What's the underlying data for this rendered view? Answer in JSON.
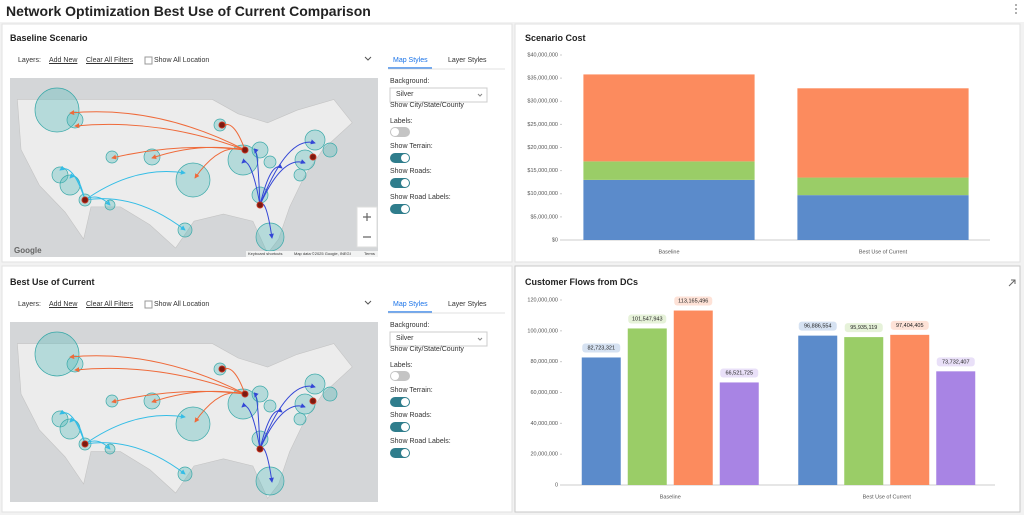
{
  "header": {
    "title": "Network Optimization Best Use of Current Comparison"
  },
  "map_panels": [
    {
      "title": "Baseline Scenario",
      "layers_label": "Layers:",
      "add_new": "Add New",
      "clear_filters": "Clear All Filters",
      "show_all": "Show All Location",
      "tabs": [
        "Map Styles",
        "Layer Styles"
      ],
      "background_label": "Background:",
      "background_value": "Silver",
      "toggles": [
        {
          "label": "Show City/State/County Labels:",
          "on": false
        },
        {
          "label": "Show Terrain:",
          "on": true
        },
        {
          "label": "Show Roads:",
          "on": true
        },
        {
          "label": "Show Road Labels:",
          "on": true
        }
      ],
      "attribution": {
        "logo": "Google",
        "shortcuts": "Keyboard shortcuts",
        "map_data": "Map data ©2025 Google, INEGI",
        "terms": "Terms"
      }
    },
    {
      "title": "Best Use of Current",
      "layers_label": "Layers:",
      "add_new": "Add New",
      "clear_filters": "Clear All Filters",
      "show_all": "Show All Location",
      "tabs": [
        "Map Styles",
        "Layer Styles"
      ],
      "background_label": "Background:",
      "background_value": "Silver",
      "toggles": [
        {
          "label": "Show City/State/County Labels:",
          "on": false
        },
        {
          "label": "Show Terrain:",
          "on": true
        },
        {
          "label": "Show Roads:",
          "on": true
        },
        {
          "label": "Show Road Labels:",
          "on": true
        }
      ]
    }
  ],
  "chart_data": [
    {
      "type": "stacked_bar",
      "title": "Scenario Cost",
      "categories": [
        "Baseline",
        "Best Use of Current"
      ],
      "series": [
        {
          "color": "#5b8bcb",
          "values": [
            13000000,
            9700000
          ]
        },
        {
          "color": "#9acd67",
          "values": [
            4000000,
            3800000
          ]
        },
        {
          "color": "#fc8b5e",
          "values": [
            18800000,
            19300000
          ]
        }
      ],
      "ylim": [
        0,
        40000000
      ],
      "yticks": [
        {
          "value": 0,
          "label": "$0"
        },
        {
          "value": 5000000,
          "label": "$5,000,000"
        },
        {
          "value": 10000000,
          "label": "$10,000,000"
        },
        {
          "value": 15000000,
          "label": "$15,000,000"
        },
        {
          "value": 20000000,
          "label": "$20,000,000"
        },
        {
          "value": 25000000,
          "label": "$25,000,000"
        },
        {
          "value": 30000000,
          "label": "$30,000,000"
        },
        {
          "value": 35000000,
          "label": "$35,000,000"
        },
        {
          "value": 40000000,
          "label": "$40,000,000"
        }
      ]
    },
    {
      "type": "grouped_bar",
      "title": "Customer Flows from DCs",
      "categories": [
        "Baseline",
        "Best Use of Current"
      ],
      "series": [
        {
          "color": "#5b8bcb",
          "values": [
            82723321,
            96886554
          ],
          "value_labels": [
            "82,723,321",
            "96,886,554"
          ]
        },
        {
          "color": "#9acd67",
          "values": [
            101547943,
            95935119
          ],
          "value_labels": [
            "101,547,943",
            "95,935,119"
          ]
        },
        {
          "color": "#fc8b5e",
          "values": [
            113165496,
            97404405
          ],
          "value_labels": [
            "113,165,496",
            "97,404,405"
          ]
        },
        {
          "color": "#a884e4",
          "values": [
            66521725,
            73732407
          ],
          "value_labels": [
            "66,521,725",
            "73,732,407"
          ]
        }
      ],
      "ylim": [
        0,
        120000000
      ],
      "yticks": [
        0,
        {
          "value": 20000000,
          "label": "20,000,000"
        },
        {
          "value": 40000000,
          "label": "40,000,000"
        },
        {
          "value": 60000000,
          "label": "60,000,000"
        },
        {
          "value": 80000000,
          "label": "80,000,000"
        },
        {
          "value": 100000000,
          "label": "100,000,000"
        },
        {
          "value": 120000000,
          "label": "120,000,000"
        }
      ]
    }
  ]
}
